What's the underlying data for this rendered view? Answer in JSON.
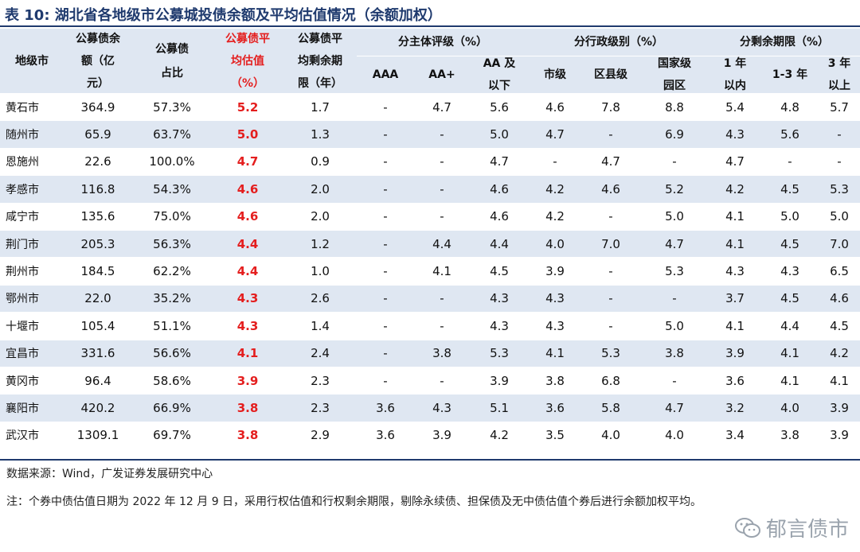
{
  "title": "表 10:  湖北省各地级市公募城投债余额及平均估值情况（余额加权）",
  "headers": {
    "city": "地级市",
    "balance": [
      "公募债余",
      "额（亿",
      "元）"
    ],
    "share": [
      "公募债",
      "占比"
    ],
    "valuation": [
      "公募债平",
      "均估值",
      "（%）"
    ],
    "term": [
      "公募债平",
      "均剩余期",
      "限（年）"
    ],
    "group_rating": "分主体评级（%）",
    "group_admin": "分行政级别（%）",
    "group_term": "分剩余期限（%）",
    "aaa": "AAA",
    "aaplus": "AA+",
    "aa_below": [
      "AA 及",
      "以下"
    ],
    "city_level": "市级",
    "county_level": "区县级",
    "national_park": [
      "国家级",
      "园区"
    ],
    "within1": [
      "1 年",
      "以内"
    ],
    "y1_3": "1-3 年",
    "y3_above": [
      "3 年",
      "以上"
    ]
  },
  "rows": [
    [
      "黄石市",
      "364.9",
      "57.3%",
      "5.2",
      "1.7",
      "-",
      "4.7",
      "5.6",
      "4.6",
      "7.8",
      "8.8",
      "5.4",
      "4.8",
      "5.7"
    ],
    [
      "随州市",
      "65.9",
      "63.7%",
      "5.0",
      "1.3",
      "-",
      "-",
      "5.0",
      "4.7",
      "-",
      "6.9",
      "4.3",
      "5.6",
      "-"
    ],
    [
      "恩施州",
      "22.6",
      "100.0%",
      "4.7",
      "0.9",
      "-",
      "-",
      "4.7",
      "-",
      "4.7",
      "-",
      "4.7",
      "-",
      "-"
    ],
    [
      "孝感市",
      "116.8",
      "54.3%",
      "4.6",
      "2.0",
      "-",
      "-",
      "4.6",
      "4.2",
      "4.6",
      "5.2",
      "4.2",
      "4.5",
      "5.3"
    ],
    [
      "咸宁市",
      "135.6",
      "75.0%",
      "4.6",
      "2.0",
      "-",
      "-",
      "4.6",
      "4.2",
      "-",
      "5.0",
      "4.1",
      "5.0",
      "5.0"
    ],
    [
      "荆门市",
      "205.3",
      "56.3%",
      "4.4",
      "1.2",
      "-",
      "4.4",
      "4.4",
      "4.0",
      "7.0",
      "4.7",
      "4.1",
      "4.5",
      "7.0"
    ],
    [
      "荆州市",
      "184.5",
      "62.2%",
      "4.4",
      "1.0",
      "-",
      "4.1",
      "4.5",
      "3.9",
      "-",
      "5.3",
      "4.3",
      "4.3",
      "6.5"
    ],
    [
      "鄂州市",
      "22.0",
      "35.2%",
      "4.3",
      "2.6",
      "-",
      "-",
      "4.3",
      "4.3",
      "-",
      "-",
      "3.7",
      "4.5",
      "4.6"
    ],
    [
      "十堰市",
      "105.4",
      "51.1%",
      "4.3",
      "1.4",
      "-",
      "-",
      "4.3",
      "4.3",
      "-",
      "5.0",
      "4.1",
      "4.4",
      "4.5"
    ],
    [
      "宜昌市",
      "331.6",
      "56.6%",
      "4.1",
      "2.4",
      "-",
      "3.8",
      "5.3",
      "4.1",
      "5.3",
      "3.8",
      "3.9",
      "4.1",
      "4.2"
    ],
    [
      "黄冈市",
      "96.4",
      "58.6%",
      "3.9",
      "2.3",
      "-",
      "-",
      "3.9",
      "3.8",
      "6.8",
      "-",
      "3.6",
      "4.1",
      "4.1"
    ],
    [
      "襄阳市",
      "420.2",
      "66.9%",
      "3.8",
      "2.3",
      "3.6",
      "4.3",
      "5.1",
      "3.6",
      "5.8",
      "4.7",
      "3.2",
      "4.0",
      "3.9"
    ],
    [
      "武汉市",
      "1309.1",
      "69.7%",
      "3.8",
      "2.9",
      "3.6",
      "3.9",
      "4.2",
      "3.5",
      "4.0",
      "4.0",
      "3.4",
      "3.8",
      "3.9"
    ]
  ],
  "source": "数据来源：Wind，广发证券发展研究中心",
  "note": "注：个券中债估值日期为 2022 年 12 月 9 日，采用行权估值和行权剩余期限，剔除永续债、担保债及无中债估值个券后进行余额加权平均。",
  "watermark": "郁言债市",
  "colors": {
    "accent": "#1f3a6e",
    "highlight": "#e41e1e",
    "band": "#dfe7f2"
  }
}
